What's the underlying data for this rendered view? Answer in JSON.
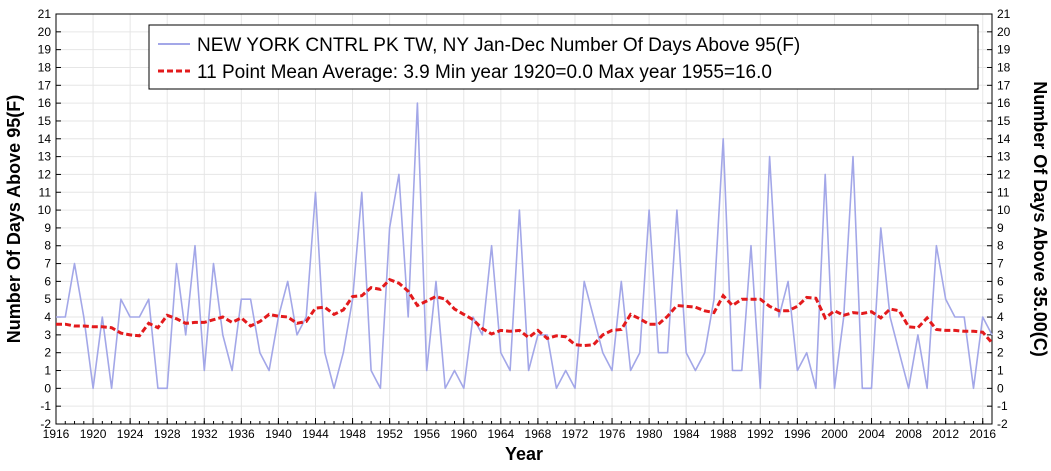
{
  "chart_data": {
    "type": "line",
    "xlabel": "Year",
    "ylabel": "Number Of Days Above 95(F)",
    "ylabel_right": "Number Of Days Above 35.00(C)",
    "xlim": [
      1916,
      2017
    ],
    "ylim": [
      -2,
      21
    ],
    "x_ticks": [
      1916,
      1920,
      1924,
      1928,
      1932,
      1936,
      1940,
      1944,
      1948,
      1952,
      1956,
      1960,
      1964,
      1968,
      1972,
      1976,
      1980,
      1984,
      1988,
      1992,
      1996,
      2000,
      2004,
      2008,
      2012,
      2016
    ],
    "y_ticks": [
      -2,
      -1,
      0,
      1,
      2,
      3,
      4,
      5,
      6,
      7,
      8,
      9,
      10,
      11,
      12,
      13,
      14,
      15,
      16,
      17,
      18,
      19,
      20,
      21
    ],
    "legend": [
      "NEW YORK CNTRL PK TW, NY  Jan-Dec  Number Of Days Above 95(F)",
      "11 Point Mean  Average: 3.9  Min year 1920=0.0  Max year 1955=16.0"
    ],
    "colors": {
      "series": "#a3a7e8",
      "mean": "#e31a1c"
    },
    "series": [
      {
        "name": "NEW YORK CNTRL PK TW, NY  Jan-Dec  Number Of Days Above 95(F)",
        "x": [
          1916,
          1917,
          1918,
          1919,
          1920,
          1921,
          1922,
          1923,
          1924,
          1925,
          1926,
          1927,
          1928,
          1929,
          1930,
          1931,
          1932,
          1933,
          1934,
          1935,
          1936,
          1937,
          1938,
          1939,
          1940,
          1941,
          1942,
          1943,
          1944,
          1945,
          1946,
          1947,
          1948,
          1949,
          1950,
          1951,
          1952,
          1953,
          1954,
          1955,
          1956,
          1957,
          1958,
          1959,
          1960,
          1961,
          1962,
          1963,
          1964,
          1965,
          1966,
          1967,
          1968,
          1969,
          1970,
          1971,
          1972,
          1973,
          1974,
          1975,
          1976,
          1977,
          1978,
          1979,
          1980,
          1981,
          1982,
          1983,
          1984,
          1985,
          1986,
          1987,
          1988,
          1989,
          1990,
          1991,
          1992,
          1993,
          1994,
          1995,
          1996,
          1997,
          1998,
          1999,
          2000,
          2001,
          2002,
          2003,
          2004,
          2005,
          2006,
          2007,
          2008,
          2009,
          2010,
          2011,
          2012,
          2013,
          2014,
          2015,
          2016,
          2017
        ],
        "values": [
          4,
          4,
          7,
          4,
          0,
          4,
          0,
          5,
          4,
          4,
          5,
          0,
          0,
          7,
          3,
          8,
          1,
          7,
          3,
          1,
          5,
          5,
          2,
          1,
          4,
          6,
          3,
          4,
          11,
          2,
          0,
          2,
          5,
          11,
          1,
          0,
          9,
          12,
          4,
          16,
          1,
          6,
          0,
          1,
          0,
          4,
          3,
          8,
          2,
          1,
          10,
          1,
          3,
          3,
          0,
          1,
          0,
          6,
          4,
          2,
          1,
          6,
          1,
          2,
          10,
          2,
          2,
          10,
          2,
          1,
          2,
          5,
          14,
          1,
          1,
          8,
          0,
          13,
          4,
          6,
          1,
          2,
          0,
          12,
          0,
          4,
          13,
          0,
          0,
          9,
          4,
          2,
          0,
          3,
          0,
          8,
          5,
          4,
          4,
          0,
          4,
          3
        ]
      },
      {
        "name": "11 Point Mean  Average: 3.9  Min year 1920=0.0  Max year 1955=16.0",
        "x": [
          1916,
          1917,
          1918,
          1919,
          1920,
          1921,
          1922,
          1923,
          1924,
          1925,
          1926,
          1927,
          1928,
          1929,
          1930,
          1931,
          1932,
          1933,
          1934,
          1935,
          1936,
          1937,
          1938,
          1939,
          1940,
          1941,
          1942,
          1943,
          1944,
          1945,
          1946,
          1947,
          1948,
          1949,
          1950,
          1951,
          1952,
          1953,
          1954,
          1955,
          1956,
          1957,
          1958,
          1959,
          1960,
          1961,
          1962,
          1963,
          1964,
          1965,
          1966,
          1967,
          1968,
          1969,
          1970,
          1971,
          1972,
          1973,
          1974,
          1975,
          1976,
          1977,
          1978,
          1979,
          1980,
          1981,
          1982,
          1983,
          1984,
          1985,
          1986,
          1987,
          1988,
          1989,
          1990,
          1991,
          1992,
          1993,
          1994,
          1995,
          1996,
          1997,
          1998,
          1999,
          2000,
          2001,
          2002,
          2003,
          2004,
          2005,
          2006,
          2007,
          2008,
          2009,
          2010,
          2011,
          2012,
          2013,
          2014,
          2015,
          2016,
          2017
        ],
        "values": [
          3.6,
          3.6,
          3.5,
          3.5,
          3.45,
          3.45,
          3.4,
          3.1,
          3.0,
          2.95,
          3.65,
          3.4,
          4.1,
          3.9,
          3.65,
          3.7,
          3.7,
          3.85,
          4.0,
          3.7,
          3.95,
          3.5,
          3.75,
          4.15,
          4.05,
          4.0,
          3.65,
          3.75,
          4.5,
          4.55,
          4.15,
          4.4,
          5.15,
          5.2,
          5.65,
          5.55,
          6.1,
          5.9,
          5.45,
          4.65,
          4.9,
          5.15,
          5.0,
          4.45,
          4.15,
          3.85,
          3.35,
          3.05,
          3.25,
          3.2,
          3.25,
          2.85,
          3.25,
          2.8,
          2.95,
          2.9,
          2.45,
          2.4,
          2.45,
          3.0,
          3.25,
          3.3,
          4.15,
          3.9,
          3.6,
          3.6,
          4.05,
          4.65,
          4.6,
          4.55,
          4.35,
          4.25,
          5.2,
          4.65,
          5.0,
          5.0,
          5.0,
          4.6,
          4.35,
          4.35,
          4.6,
          5.1,
          5.05,
          3.95,
          4.35,
          4.1,
          4.25,
          4.2,
          4.3,
          3.95,
          4.45,
          4.35,
          3.45,
          3.4,
          3.95,
          3.3,
          3.25,
          3.25,
          3.2,
          3.2,
          3.15,
          2.55
        ]
      }
    ]
  }
}
